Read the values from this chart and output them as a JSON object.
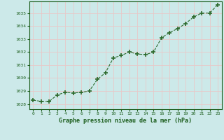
{
  "x": [
    0,
    1,
    2,
    3,
    4,
    5,
    6,
    7,
    8,
    9,
    10,
    11,
    12,
    13,
    14,
    15,
    16,
    17,
    18,
    19,
    20,
    21,
    22,
    23
  ],
  "y": [
    1028.3,
    1028.2,
    1028.2,
    1028.7,
    1028.9,
    1028.85,
    1028.9,
    1029.0,
    1029.9,
    1030.4,
    1031.55,
    1031.75,
    1032.0,
    1031.85,
    1031.8,
    1032.0,
    1033.1,
    1033.5,
    1033.8,
    1034.2,
    1034.7,
    1035.0,
    1035.0,
    1035.65
  ],
  "line_color": "#2d6a2d",
  "marker_color": "#2d6a2d",
  "bg_color": "#cce9e9",
  "grid_color": "#e8c8c8",
  "text_color": "#1a5c1a",
  "xlabel": "Graphe pression niveau de la mer (hPa)",
  "ylim_min": 1027.6,
  "ylim_max": 1035.9,
  "xlim_min": -0.5,
  "xlim_max": 23.5,
  "yticks": [
    1028,
    1029,
    1030,
    1031,
    1032,
    1033,
    1034,
    1035
  ],
  "xticks": [
    0,
    1,
    2,
    3,
    4,
    5,
    6,
    7,
    8,
    9,
    10,
    11,
    12,
    13,
    14,
    15,
    16,
    17,
    18,
    19,
    20,
    21,
    22,
    23
  ]
}
